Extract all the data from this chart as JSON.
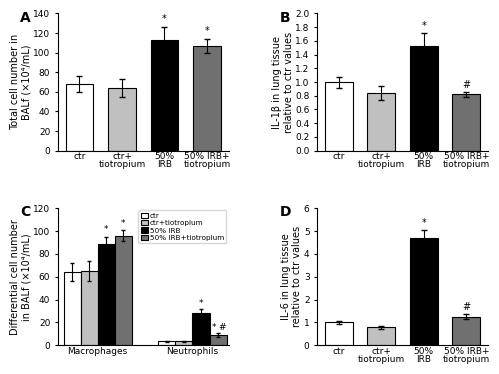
{
  "panel_A": {
    "categories": [
      "ctr",
      "ctr+\ntiotropium",
      "50%\nIRB",
      "50% IRB+\ntiotropium"
    ],
    "values": [
      68,
      64,
      113,
      107
    ],
    "errors": [
      8,
      9,
      13,
      7
    ],
    "colors": [
      "white",
      "#c0c0c0",
      "black",
      "#707070"
    ],
    "ylabel": "Total cell number in\nBALf (×10⁴/mL)",
    "ylim": [
      0,
      140
    ],
    "yticks": [
      0,
      20,
      40,
      60,
      80,
      100,
      120,
      140
    ],
    "stars": [
      "",
      "",
      "*",
      "*"
    ],
    "label": "A"
  },
  "panel_B": {
    "categories": [
      "ctr",
      "ctr+\ntiotropium",
      "50%\nIRB",
      "50% IRB+\ntiotropium"
    ],
    "values": [
      1.0,
      0.84,
      1.53,
      0.82
    ],
    "errors": [
      0.08,
      0.1,
      0.18,
      0.04
    ],
    "colors": [
      "white",
      "#c0c0c0",
      "black",
      "#707070"
    ],
    "ylabel": "IL-1β in lung tissue\nrelative to ctr values",
    "ylim": [
      0.0,
      2.0
    ],
    "yticks": [
      0.0,
      0.2,
      0.4,
      0.6,
      0.8,
      1.0,
      1.2,
      1.4,
      1.6,
      1.8,
      2.0
    ],
    "stars": [
      "",
      "",
      "*",
      "#"
    ],
    "label": "B"
  },
  "panel_C": {
    "group_labels": [
      "Macrophages",
      "Neutrophils"
    ],
    "categories": [
      "ctr",
      "ctr+tiotropium",
      "50% IRB",
      "50% IRB+tiotropium"
    ],
    "values_macro": [
      64,
      65,
      89,
      96
    ],
    "errors_macro": [
      8,
      9,
      6,
      5
    ],
    "values_neut": [
      3.5,
      3.5,
      28,
      9
    ],
    "errors_neut": [
      0.5,
      0.5,
      4,
      2
    ],
    "colors": [
      "white",
      "#c0c0c0",
      "black",
      "#707070"
    ],
    "ylabel": "Differential cell number\nin BALf (×10⁴/mL)",
    "ylim": [
      0,
      120
    ],
    "yticks": [
      0,
      20,
      40,
      60,
      80,
      100,
      120
    ],
    "stars_macro": [
      "",
      "",
      "*",
      "*"
    ],
    "stars_neut": [
      "",
      "",
      "*",
      "*#"
    ],
    "label": "C",
    "legend_labels": [
      "ctr",
      "ctr+tiotropium",
      "50% IRB",
      "50% IRB+tiotropium"
    ]
  },
  "panel_D": {
    "categories": [
      "ctr",
      "ctr+\ntiotropium",
      "50%\nIRB",
      "50% IRB+\ntiotropium"
    ],
    "values": [
      1.0,
      0.78,
      4.7,
      1.25
    ],
    "errors": [
      0.06,
      0.07,
      0.35,
      0.12
    ],
    "colors": [
      "white",
      "#c0c0c0",
      "black",
      "#707070"
    ],
    "ylabel": "IL-6 in lung tissue\nrelative to ctr values",
    "ylim": [
      0,
      6
    ],
    "yticks": [
      0,
      1,
      2,
      3,
      4,
      5,
      6
    ],
    "stars": [
      "",
      "",
      "*",
      "#"
    ],
    "label": "D"
  },
  "edgecolor": "black",
  "bar_width": 0.65,
  "fontsize_label": 7,
  "fontsize_tick": 6.5,
  "fontsize_panel": 10
}
